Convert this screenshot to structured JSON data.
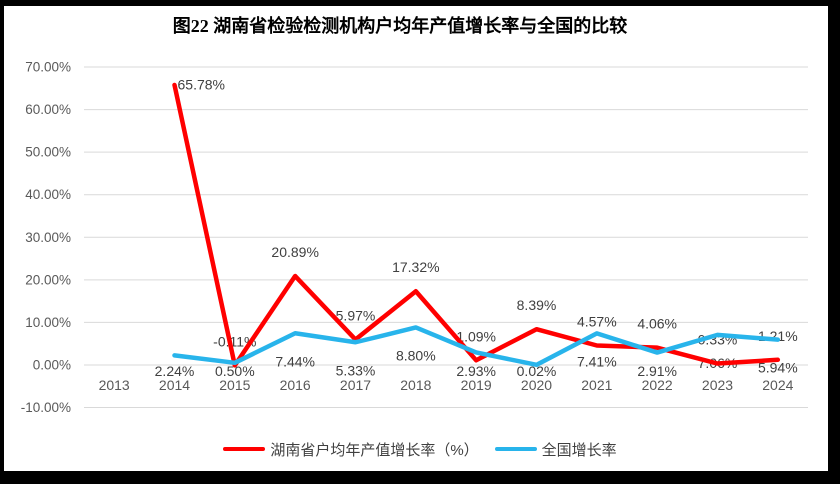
{
  "title": "图22 湖南省检验检测机构户均年产值增长率与全国的比较",
  "frame_color": "#000000",
  "chart_data": {
    "type": "line",
    "title": "图22 湖南省检验检测机构户均年产值增长率与全国的比较",
    "categories": [
      "2013",
      "2014",
      "2015",
      "2016",
      "2017",
      "2018",
      "2019",
      "2020",
      "2021",
      "2022",
      "2023",
      "2024"
    ],
    "series": [
      {
        "name": "湖南省户均年产值增长率（%）",
        "color": "#FF0000",
        "values": [
          null,
          65.78,
          -0.11,
          20.89,
          5.97,
          17.32,
          1.09,
          8.39,
          4.57,
          4.06,
          0.33,
          1.21
        ],
        "label_side": "above"
      },
      {
        "name": "全国增长率",
        "color": "#28B4EB",
        "values": [
          null,
          2.24,
          0.5,
          7.44,
          5.33,
          8.8,
          2.93,
          0.02,
          7.41,
          2.91,
          7.06,
          5.94
        ],
        "label_side": "below"
      }
    ],
    "y_axis": {
      "tick_labels": [
        "70.00%",
        "60.00%",
        "50.00%",
        "40.00%",
        "30.00%",
        "20.00%",
        "10.00%",
        "0.00%",
        "-10.00%"
      ],
      "min": -10,
      "max": 70,
      "step": 10
    },
    "ylim": [
      -10,
      70
    ],
    "grid": true,
    "legend_position": "bottom",
    "label_format": "0.00%",
    "colors": {
      "gridline": "#D9D9D9",
      "axis_text": "#595959",
      "data_label": "#404040",
      "title_text": "#000000"
    }
  }
}
